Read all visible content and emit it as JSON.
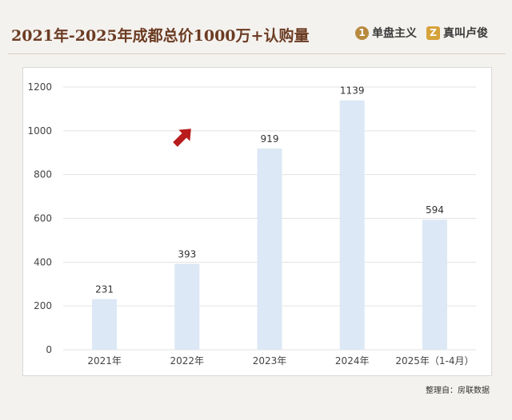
{
  "header": {
    "title": "2021年-2025年成都总价1000万+认购量",
    "brand1_mark": "1",
    "brand1_text": "单盘主义",
    "brand2_mark": "Z",
    "brand2_text": "真叫卢俊"
  },
  "footer": {
    "source": "整理自：房联数据"
  },
  "colors": {
    "bar": "#dce8f5",
    "arrow": "#b81c1c",
    "title": "#6b3b22",
    "grid": "#e3e3e3"
  },
  "chart_data": {
    "type": "bar",
    "title": "2021年-2025年成都总价1000万+认购量",
    "categories": [
      "2021年",
      "2022年",
      "2023年",
      "2024年",
      "2025年（1-4月）"
    ],
    "values": [
      231,
      393,
      919,
      1139,
      594
    ],
    "ylim": [
      0,
      1200
    ],
    "yticks": [
      0,
      200,
      400,
      600,
      800,
      1000,
      1200
    ],
    "xlabel": "",
    "ylabel": "",
    "grid": true,
    "data_labels": true,
    "annotations": [
      {
        "type": "arrow",
        "icon": "red-up-right-arrow"
      }
    ]
  }
}
